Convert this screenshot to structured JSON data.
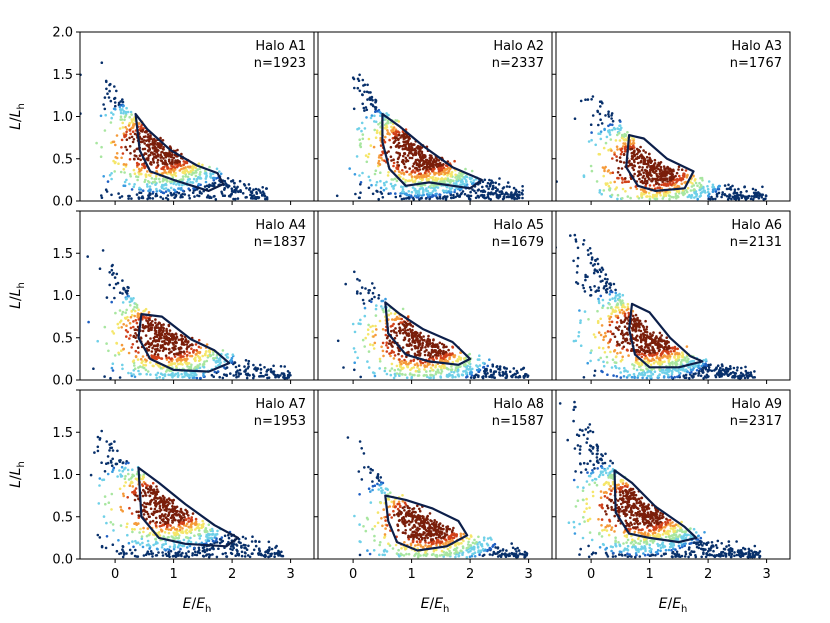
{
  "figure": {
    "xlabel": "E/E_h",
    "ylabel": "L/L_h",
    "colormap": [
      "#08306b",
      "#1f5fc2",
      "#3a9be0",
      "#6fd0e8",
      "#a8e6a0",
      "#f5e66a",
      "#f59a3a",
      "#d1411a",
      "#7a1e0a"
    ],
    "contour_color": "#0c1f4a"
  },
  "chart_data": [
    {
      "type": "scatter",
      "halo": "Halo A1",
      "n_label": "n=1923",
      "n": 1923,
      "xlim": [
        -0.6,
        3.4
      ],
      "ylim": [
        0.0,
        2.0
      ],
      "xticks": [
        "0",
        "1",
        "2",
        "3"
      ],
      "yticks": [
        "0.0",
        "0.5",
        "1.0",
        "1.5",
        "2.0"
      ],
      "peak": {
        "x": 0.75,
        "y": 0.65
      },
      "ridge": [
        [
          -0.2,
          1.5
        ],
        [
          0.3,
          1.0
        ],
        [
          0.8,
          0.62
        ],
        [
          1.4,
          0.38
        ],
        [
          2.0,
          0.2
        ],
        [
          2.6,
          0.08
        ]
      ],
      "contour": [
        [
          0.35,
          1.03
        ],
        [
          0.55,
          0.85
        ],
        [
          0.95,
          0.6
        ],
        [
          1.4,
          0.42
        ],
        [
          1.75,
          0.33
        ],
        [
          1.85,
          0.2
        ],
        [
          1.6,
          0.12
        ],
        [
          1.0,
          0.25
        ],
        [
          0.6,
          0.35
        ],
        [
          0.42,
          0.6
        ],
        [
          0.35,
          1.03
        ]
      ]
    },
    {
      "type": "scatter",
      "halo": "Halo A2",
      "n_label": "n=2337",
      "n": 2337,
      "xlim": [
        -0.6,
        3.4
      ],
      "ylim": [
        0.0,
        2.0
      ],
      "xticks": [
        "0",
        "1",
        "2",
        "3"
      ],
      "yticks": [],
      "peak": {
        "x": 1.15,
        "y": 0.6
      },
      "ridge": [
        [
          0.0,
          1.6
        ],
        [
          0.5,
          1.05
        ],
        [
          1.1,
          0.62
        ],
        [
          1.7,
          0.35
        ],
        [
          2.3,
          0.18
        ],
        [
          2.9,
          0.06
        ]
      ],
      "contour": [
        [
          0.5,
          1.03
        ],
        [
          0.8,
          0.88
        ],
        [
          1.2,
          0.65
        ],
        [
          1.7,
          0.4
        ],
        [
          2.2,
          0.25
        ],
        [
          2.0,
          0.15
        ],
        [
          1.3,
          0.22
        ],
        [
          0.9,
          0.18
        ],
        [
          0.62,
          0.38
        ],
        [
          0.5,
          0.7
        ],
        [
          0.5,
          1.03
        ]
      ]
    },
    {
      "type": "scatter",
      "halo": "Halo A3",
      "n_label": "n=1767",
      "n": 1767,
      "xlim": [
        -0.6,
        3.4
      ],
      "ylim": [
        0.0,
        2.0
      ],
      "xticks": [
        "0",
        "1",
        "2",
        "3"
      ],
      "yticks": [],
      "peak": {
        "x": 1.0,
        "y": 0.42
      },
      "ridge": [
        [
          0.1,
          1.25
        ],
        [
          0.5,
          0.85
        ],
        [
          1.0,
          0.45
        ],
        [
          1.6,
          0.28
        ],
        [
          2.2,
          0.15
        ],
        [
          3.0,
          0.06
        ]
      ],
      "contour": [
        [
          0.65,
          0.78
        ],
        [
          0.9,
          0.74
        ],
        [
          1.3,
          0.5
        ],
        [
          1.75,
          0.35
        ],
        [
          1.6,
          0.15
        ],
        [
          1.1,
          0.12
        ],
        [
          0.8,
          0.18
        ],
        [
          0.6,
          0.4
        ],
        [
          0.65,
          0.78
        ]
      ]
    },
    {
      "type": "scatter",
      "halo": "Halo A4",
      "n_label": "n=1837",
      "n": 1837,
      "xlim": [
        -0.6,
        3.4
      ],
      "ylim": [
        0.0,
        2.0
      ],
      "xticks": [
        "0",
        "1",
        "2",
        "3"
      ],
      "yticks": [
        "0.0",
        "0.5",
        "1.0",
        "1.5"
      ],
      "peak": {
        "x": 0.85,
        "y": 0.52
      },
      "ridge": [
        [
          -0.1,
          1.4
        ],
        [
          0.4,
          0.85
        ],
        [
          0.9,
          0.55
        ],
        [
          1.5,
          0.35
        ],
        [
          2.2,
          0.18
        ],
        [
          3.0,
          0.07
        ]
      ],
      "contour": [
        [
          0.45,
          0.78
        ],
        [
          0.8,
          0.75
        ],
        [
          1.3,
          0.48
        ],
        [
          1.7,
          0.35
        ],
        [
          1.95,
          0.2
        ],
        [
          1.6,
          0.1
        ],
        [
          1.0,
          0.12
        ],
        [
          0.6,
          0.25
        ],
        [
          0.4,
          0.5
        ],
        [
          0.45,
          0.78
        ]
      ]
    },
    {
      "type": "scatter",
      "halo": "Halo A5",
      "n_label": "n=1679",
      "n": 1679,
      "xlim": [
        -0.6,
        3.4
      ],
      "ylim": [
        0.0,
        2.0
      ],
      "xticks": [
        "0",
        "1",
        "2",
        "3"
      ],
      "yticks": [],
      "peak": {
        "x": 1.15,
        "y": 0.48
      },
      "ridge": [
        [
          0.0,
          1.35
        ],
        [
          0.6,
          0.85
        ],
        [
          1.1,
          0.55
        ],
        [
          1.7,
          0.3
        ],
        [
          2.3,
          0.15
        ],
        [
          3.0,
          0.05
        ]
      ],
      "contour": [
        [
          0.55,
          0.92
        ],
        [
          0.8,
          0.78
        ],
        [
          1.2,
          0.6
        ],
        [
          1.7,
          0.45
        ],
        [
          2.0,
          0.25
        ],
        [
          1.8,
          0.18
        ],
        [
          1.3,
          0.22
        ],
        [
          0.9,
          0.3
        ],
        [
          0.6,
          0.55
        ],
        [
          0.55,
          0.92
        ]
      ]
    },
    {
      "type": "scatter",
      "halo": "Halo A6",
      "n_label": "n=2131",
      "n": 2131,
      "xlim": [
        -0.6,
        3.4
      ],
      "ylim": [
        0.0,
        2.0
      ],
      "xticks": [
        "0",
        "1",
        "2",
        "3"
      ],
      "yticks": [],
      "peak": {
        "x": 0.95,
        "y": 0.55
      },
      "ridge": [
        [
          -0.3,
          1.8
        ],
        [
          0.3,
          1.15
        ],
        [
          0.9,
          0.6
        ],
        [
          1.5,
          0.3
        ],
        [
          2.1,
          0.15
        ],
        [
          2.8,
          0.05
        ]
      ],
      "contour": [
        [
          0.7,
          0.9
        ],
        [
          1.0,
          0.8
        ],
        [
          1.35,
          0.5
        ],
        [
          1.7,
          0.28
        ],
        [
          1.9,
          0.22
        ],
        [
          1.5,
          0.15
        ],
        [
          1.0,
          0.15
        ],
        [
          0.75,
          0.3
        ],
        [
          0.65,
          0.6
        ],
        [
          0.7,
          0.9
        ]
      ]
    },
    {
      "type": "scatter",
      "halo": "Halo A7",
      "n_label": "n=1953",
      "n": 1953,
      "xlim": [
        -0.6,
        3.4
      ],
      "ylim": [
        0.0,
        2.0
      ],
      "xticks": [
        "0",
        "1",
        "2",
        "3"
      ],
      "yticks": [
        "0.0",
        "0.5",
        "1.0",
        "1.5"
      ],
      "peak": {
        "x": 0.85,
        "y": 0.65
      },
      "ridge": [
        [
          -0.3,
          1.55
        ],
        [
          0.3,
          1.05
        ],
        [
          0.9,
          0.65
        ],
        [
          1.5,
          0.38
        ],
        [
          2.2,
          0.18
        ],
        [
          2.9,
          0.06
        ]
      ],
      "contour": [
        [
          0.4,
          1.08
        ],
        [
          0.75,
          0.9
        ],
        [
          1.2,
          0.65
        ],
        [
          1.7,
          0.4
        ],
        [
          2.1,
          0.25
        ],
        [
          1.9,
          0.15
        ],
        [
          1.2,
          0.18
        ],
        [
          0.75,
          0.25
        ],
        [
          0.45,
          0.5
        ],
        [
          0.4,
          1.08
        ]
      ]
    },
    {
      "type": "scatter",
      "halo": "Halo A8",
      "n_label": "n=1587",
      "n": 1587,
      "xlim": [
        -0.6,
        3.4
      ],
      "ylim": [
        0.0,
        2.0
      ],
      "xticks": [
        "0",
        "1",
        "2",
        "3"
      ],
      "yticks": [],
      "peak": {
        "x": 1.25,
        "y": 0.45
      },
      "ridge": [
        [
          0.1,
          1.4
        ],
        [
          0.6,
          0.78
        ],
        [
          1.2,
          0.48
        ],
        [
          1.8,
          0.28
        ],
        [
          2.4,
          0.13
        ],
        [
          3.0,
          0.05
        ]
      ],
      "contour": [
        [
          0.55,
          0.75
        ],
        [
          0.9,
          0.7
        ],
        [
          1.35,
          0.6
        ],
        [
          1.8,
          0.45
        ],
        [
          1.95,
          0.28
        ],
        [
          1.6,
          0.15
        ],
        [
          1.1,
          0.1
        ],
        [
          0.75,
          0.2
        ],
        [
          0.6,
          0.45
        ],
        [
          0.55,
          0.75
        ]
      ]
    },
    {
      "type": "scatter",
      "halo": "Halo A9",
      "n_label": "n=2317",
      "n": 2317,
      "xlim": [
        -0.6,
        3.4
      ],
      "ylim": [
        0.0,
        2.0
      ],
      "xticks": [
        "0",
        "1",
        "2",
        "3"
      ],
      "yticks": [],
      "peak": {
        "x": 0.8,
        "y": 0.6
      },
      "ridge": [
        [
          -0.3,
          1.85
        ],
        [
          0.3,
          1.1
        ],
        [
          0.9,
          0.62
        ],
        [
          1.5,
          0.35
        ],
        [
          2.1,
          0.16
        ],
        [
          2.9,
          0.05
        ]
      ],
      "contour": [
        [
          0.4,
          1.05
        ],
        [
          0.7,
          0.9
        ],
        [
          1.1,
          0.62
        ],
        [
          1.6,
          0.38
        ],
        [
          1.8,
          0.25
        ],
        [
          1.5,
          0.2
        ],
        [
          1.0,
          0.25
        ],
        [
          0.65,
          0.3
        ],
        [
          0.42,
          0.55
        ],
        [
          0.4,
          1.05
        ]
      ]
    }
  ]
}
